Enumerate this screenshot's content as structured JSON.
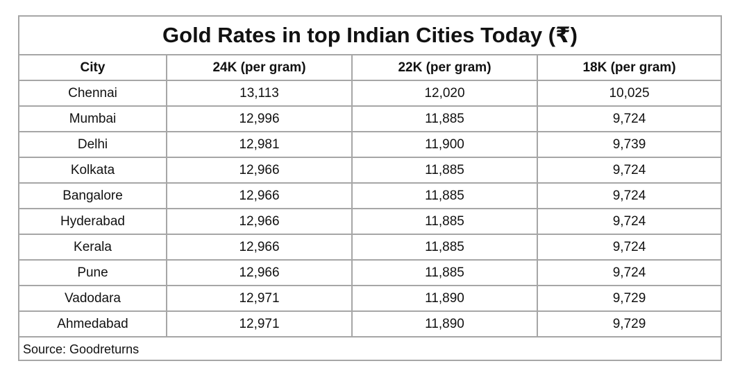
{
  "title": "Gold Rates in top Indian Cities Today (₹)",
  "table": {
    "headers": [
      "City",
      "24K (per gram)",
      "22K (per gram)",
      "18K (per gram)"
    ],
    "rows": [
      [
        "Chennai",
        "13,113",
        "12,020",
        "10,025"
      ],
      [
        "Mumbai",
        "12,996",
        "11,885",
        "9,724"
      ],
      [
        "Delhi",
        "12,981",
        "11,900",
        "9,739"
      ],
      [
        "Kolkata",
        "12,966",
        "11,885",
        "9,724"
      ],
      [
        "Bangalore",
        "12,966",
        "11,885",
        "9,724"
      ],
      [
        "Hyderabad",
        "12,966",
        "11,885",
        "9,724"
      ],
      [
        "Kerala",
        "12,966",
        "11,885",
        "9,724"
      ],
      [
        "Pune",
        "12,966",
        "11,885",
        "9,724"
      ],
      [
        "Vadodara",
        "12,971",
        "11,890",
        "9,729"
      ],
      [
        "Ahmedabad",
        "12,971",
        "11,890",
        "9,729"
      ]
    ]
  },
  "source": "Source: Goodreturns",
  "colors": {
    "border": "#a6a6a6",
    "text": "#111111",
    "background": "#ffffff"
  }
}
